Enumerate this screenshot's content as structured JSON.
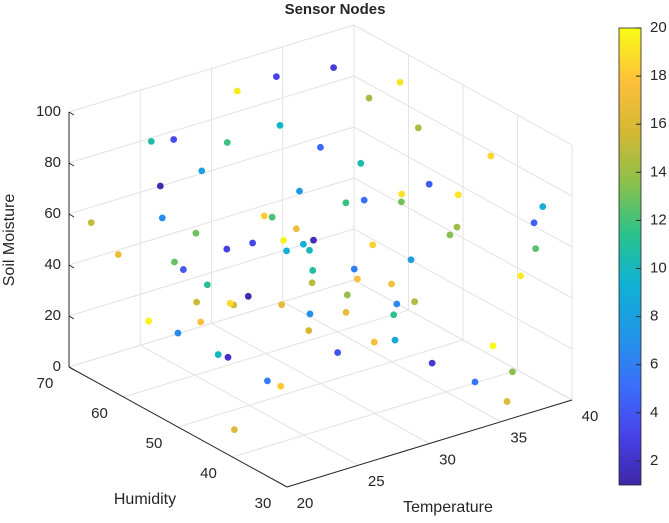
{
  "chart_data": {
    "type": "scatter3",
    "title": "Sensor Nodes",
    "xlabel": "Temperature",
    "ylabel": "Humidity",
    "zlabel": "Soil Moisture",
    "xlim": [
      20,
      40
    ],
    "ylim": [
      30,
      70
    ],
    "zlim": [
      0,
      100
    ],
    "xticks": [
      20,
      25,
      30,
      35,
      40
    ],
    "yticks": [
      30,
      40,
      50,
      60,
      70
    ],
    "zticks": [
      0,
      20,
      40,
      60,
      80,
      100
    ],
    "clim": [
      1,
      20
    ],
    "cticks": [
      2,
      4,
      6,
      8,
      10,
      12,
      14,
      16,
      18,
      20
    ],
    "colormap": "parula",
    "grid": true,
    "series": [
      {
        "x": [
          23.4,
          37.1,
          28.9,
          31.2,
          20.8,
          35.6,
          26.3,
          39.2,
          33.7,
          22.1,
          29.5,
          24.8,
          36.9,
          30.4,
          21.7,
          38.3,
          27.6,
          32.9,
          25.1,
          34.8,
          20.3,
          31.9,
          37.8,
          23.9,
          28.2,
          35.1,
          26.9,
          39.7,
          22.6,
          33.3,
          30.8,
          24.2,
          36.4,
          21.2,
          29.1,
          38.8,
          27.1,
          34.2,
          25.7,
          32.4,
          20.5,
          37.4,
          28.6,
          31.6,
          23.1,
          35.9,
          26.6,
          39.5,
          22.9,
          33.9,
          29.8,
          24.5,
          36.1,
          30.1,
          21.9,
          38.6,
          27.9,
          32.1,
          25.4,
          34.5,
          20.9,
          31.4,
          37.6,
          23.6,
          28.4,
          35.3,
          26.1,
          39.9,
          22.3,
          33.1,
          30.6,
          24.1,
          36.7,
          21.4,
          29.3,
          38.1,
          27.3,
          34.9,
          25.9,
          32.7
        ],
        "y": [
          45.2,
          61.8,
          33.7,
          68.4,
          52.1,
          39.6,
          57.3,
          42.8,
          65.9,
          31.5,
          48.7,
          63.2,
          36.4,
          54.9,
          44.1,
          69.3,
          38.8,
          59.6,
          47.5,
          34.2,
          66.7,
          41.3,
          55.8,
          30.9,
          62.4,
          50.3,
          35.7,
          58.1,
          43.9,
          67.5,
          37.2,
          53.6,
          46.8,
          64.1,
          32.8,
          56.4,
          49.2,
          40.5,
          69.8,
          60.7,
          34.9,
          51.4,
          67.1,
          44.6,
          58.9,
          31.2,
          62.9,
          38.1,
          54.3,
          46.2,
          65.4,
          36.9,
          42.2,
          57.7,
          50.8,
          33.3,
          61.1,
          48.1,
          39.9,
          68.9,
          43.4,
          55.2,
          30.4,
          64.8,
          37.8,
          59.2,
          47.1,
          35.1,
          52.6,
          66.2,
          41.7,
          63.6,
          32.3,
          56.9,
          49.6,
          45.9,
          68.1,
          53.9,
          34.6,
          60.2
        ],
        "z": [
          72,
          15,
          48,
          91,
          33,
          64,
          8,
          82,
          27,
          56,
          95,
          41,
          19,
          69,
          3,
          87,
          52,
          36,
          77,
          11,
          60,
          24,
          98,
          45,
          83,
          30,
          67,
          6,
          54,
          39,
          88,
          17,
          71,
          49,
          93,
          26,
          62,
          12,
          79,
          44,
          35,
          86,
          21,
          58,
          97,
          5,
          74,
          40,
          66,
          29,
          13,
          81,
          57,
          92,
          37,
          68,
          22,
          85,
          47,
          1,
          76,
          31,
          63,
          18,
          89,
          51,
          9,
          70,
          42,
          96,
          25,
          59,
          14,
          84,
          46,
          65,
          28,
          99,
          53,
          38
        ],
        "c": [
          3.2,
          17.8,
          11.5,
          19.4,
          6.7,
          14.1,
          1.9,
          18.6,
          9.3,
          15.9,
          4.8,
          12.7,
          19.9,
          7.4,
          16.3,
          2.6,
          13.8,
          10.1,
          18.2,
          5.5,
          15.2,
          8.6,
          19.1,
          3.9,
          11.9,
          17.4,
          6.1,
          14.7,
          1.4,
          12.2,
          18.9,
          9.8,
          4.2,
          16.8,
          13.1,
          7.9,
          19.6,
          2.3,
          10.7,
          17.1,
          5.9,
          14.4,
          11.1,
          18.4,
          3.5,
          16.1,
          8.2,
          19.3,
          12.9,
          6.4,
          15.6,
          1.7,
          13.4,
          9.5,
          17.6,
          4.5,
          18.8,
          10.4,
          7.1,
          16.5,
          2.9,
          14.9,
          12.4,
          19.7,
          5.2,
          11.7,
          18.1,
          8.9,
          15.4,
          3.1,
          17.3,
          6.9,
          13.6,
          1.2,
          10.9,
          19.2,
          4.1,
          14.2,
          16.7,
          9.1
        ]
      }
    ]
  }
}
